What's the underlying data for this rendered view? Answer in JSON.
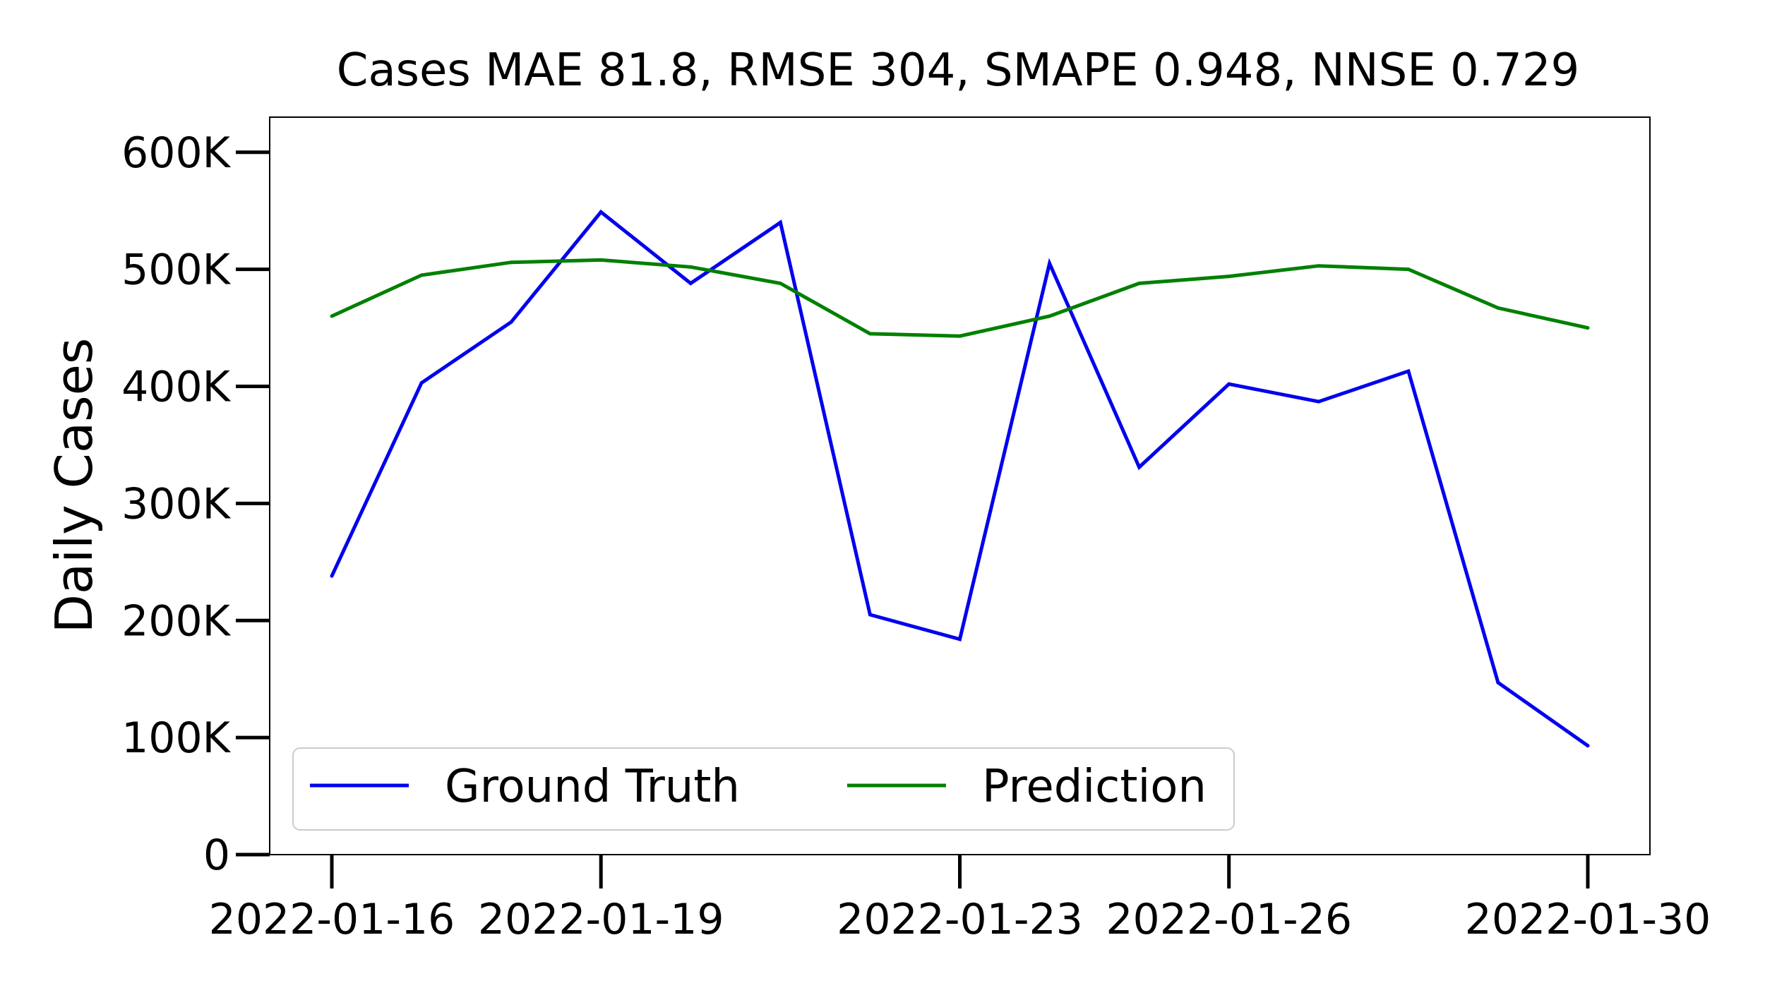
{
  "chart_data": {
    "type": "line",
    "title": "Cases MAE 81.8, RMSE 304, SMAPE 0.948, NNSE 0.729",
    "xlabel": "",
    "ylabel": "Daily Cases",
    "x": [
      "2022-01-16",
      "2022-01-17",
      "2022-01-18",
      "2022-01-19",
      "2022-01-20",
      "2022-01-21",
      "2022-01-22",
      "2022-01-23",
      "2022-01-24",
      "2022-01-25",
      "2022-01-26",
      "2022-01-27",
      "2022-01-28",
      "2022-01-29",
      "2022-01-30"
    ],
    "x_ticks": [
      "2022-01-16",
      "2022-01-19",
      "2022-01-23",
      "2022-01-26",
      "2022-01-30"
    ],
    "y_ticks": [
      0,
      100000,
      200000,
      300000,
      400000,
      500000,
      600000
    ],
    "y_tick_labels": [
      "0",
      "100K",
      "200K",
      "300K",
      "400K",
      "500K",
      "600K"
    ],
    "ylim": [
      0,
      630000
    ],
    "grid": false,
    "legend_position": "lower-left",
    "series": [
      {
        "name": "Ground Truth",
        "color": "#0000ee",
        "values": [
          238000,
          403000,
          455000,
          549000,
          488000,
          540000,
          205000,
          184000,
          505000,
          331000,
          402000,
          387000,
          413000,
          147000,
          93000
        ]
      },
      {
        "name": "Prediction",
        "color": "#008000",
        "values": [
          460000,
          495000,
          506000,
          508000,
          502000,
          488000,
          445000,
          443000,
          460000,
          488000,
          494000,
          503000,
          500000,
          467000,
          450000
        ]
      }
    ]
  }
}
